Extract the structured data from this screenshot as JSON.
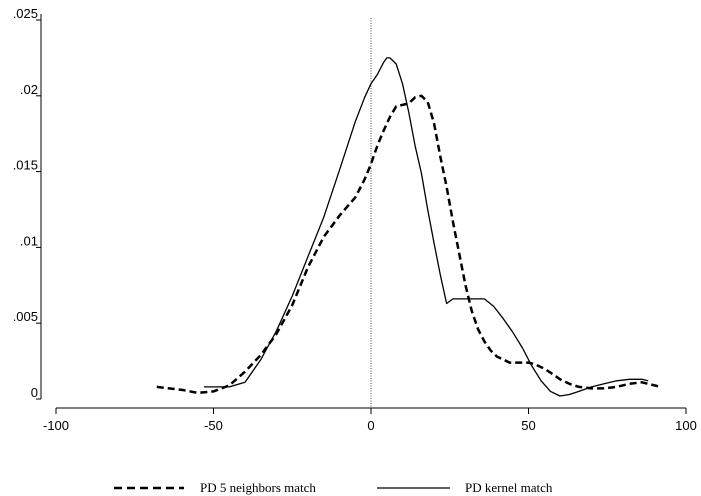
{
  "chart_data": {
    "type": "line",
    "title": "",
    "xlabel": "",
    "ylabel": "",
    "xlim": [
      -100,
      100
    ],
    "ylim": [
      0,
      0.025
    ],
    "x_ticks": [
      -100,
      -50,
      0,
      50,
      100
    ],
    "x_tick_labels": [
      "-100",
      "-50",
      "0",
      "50",
      "100"
    ],
    "y_ticks": [
      0,
      0.005,
      0.01,
      0.015,
      0.02,
      0.025
    ],
    "y_tick_labels": [
      "0",
      ".005",
      ".01",
      ".015",
      ".02",
      ".025"
    ],
    "reference_line_x": 0,
    "grid": false,
    "legend_position": "bottom",
    "series": [
      {
        "name": "PD 5 neighbors match",
        "style": "dashed",
        "color": "#000000",
        "x": [
          -68,
          -60,
          -55,
          -50,
          -45,
          -40,
          -35,
          -30,
          -25,
          -20,
          -15,
          -10,
          -5,
          -2,
          0,
          2,
          4,
          6,
          8,
          10,
          12,
          14,
          16,
          18,
          20,
          22,
          24,
          26,
          28,
          30,
          32,
          34,
          36,
          38,
          40,
          42,
          44,
          46,
          48,
          50,
          52,
          55,
          58,
          60,
          63,
          66,
          70,
          74,
          78,
          82,
          86,
          90,
          92
        ],
        "y": [
          0.0008,
          0.0006,
          0.0004,
          0.0005,
          0.0009,
          0.0018,
          0.0029,
          0.0043,
          0.0062,
          0.0087,
          0.0107,
          0.0121,
          0.0133,
          0.0145,
          0.0155,
          0.0167,
          0.0177,
          0.0186,
          0.0193,
          0.0194,
          0.0195,
          0.0199,
          0.02,
          0.0196,
          0.0182,
          0.016,
          0.014,
          0.0117,
          0.0096,
          0.0075,
          0.0058,
          0.0046,
          0.0038,
          0.0032,
          0.0028,
          0.0026,
          0.0024,
          0.0024,
          0.0024,
          0.0024,
          0.0023,
          0.002,
          0.0016,
          0.0013,
          0.001,
          0.0008,
          0.0007,
          0.0007,
          0.0008,
          0.001,
          0.0011,
          0.0009,
          0.0008
        ]
      },
      {
        "name": "PD kernel match",
        "style": "solid",
        "color": "#000000",
        "x": [
          -53,
          -45,
          -40,
          -35,
          -30,
          -25,
          -20,
          -15,
          -10,
          -5,
          -2,
          0,
          2,
          4,
          5,
          6,
          8,
          10,
          12,
          14,
          16,
          18,
          20,
          22,
          24,
          26,
          28,
          30,
          33,
          36,
          39,
          42,
          45,
          48,
          51,
          54,
          57,
          60,
          63,
          66,
          70,
          74,
          78,
          82,
          86,
          88
        ],
        "y": [
          0.0008,
          0.0008,
          0.0011,
          0.0026,
          0.0045,
          0.0068,
          0.0094,
          0.012,
          0.0151,
          0.0183,
          0.0199,
          0.0208,
          0.0214,
          0.0222,
          0.0225,
          0.0225,
          0.0221,
          0.0208,
          0.0189,
          0.0167,
          0.0149,
          0.0125,
          0.0103,
          0.0082,
          0.0063,
          0.0066,
          0.0066,
          0.0066,
          0.0066,
          0.0066,
          0.0061,
          0.0053,
          0.0044,
          0.0034,
          0.0022,
          0.0012,
          0.0005,
          0.0002,
          0.0003,
          0.0005,
          0.0008,
          0.001,
          0.0012,
          0.0013,
          0.0013,
          0.0012
        ]
      }
    ]
  }
}
